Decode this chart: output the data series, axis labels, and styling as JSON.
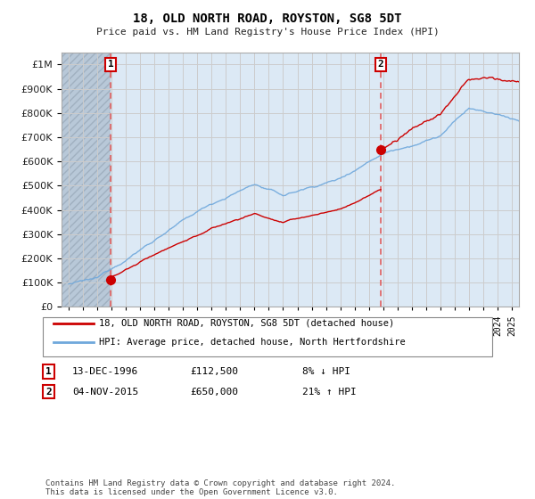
{
  "title": "18, OLD NORTH ROAD, ROYSTON, SG8 5DT",
  "subtitle": "Price paid vs. HM Land Registry's House Price Index (HPI)",
  "legend_line1": "18, OLD NORTH ROAD, ROYSTON, SG8 5DT (detached house)",
  "legend_line2": "HPI: Average price, detached house, North Hertfordshire",
  "footnote": "Contains HM Land Registry data © Crown copyright and database right 2024.\nThis data is licensed under the Open Government Licence v3.0.",
  "sale1_date": "13-DEC-1996",
  "sale1_price": 112500,
  "sale1_note": "8% ↓ HPI",
  "sale2_date": "04-NOV-2015",
  "sale2_price": 650000,
  "sale2_note": "21% ↑ HPI",
  "sale1_x": 1996.95,
  "sale2_x": 2015.84,
  "ylim_min": 0,
  "ylim_max": 1050000,
  "xlim_min": 1993.5,
  "xlim_max": 2025.5,
  "line_color_hpi": "#6fa8dc",
  "line_color_price": "#cc0000",
  "marker_color": "#cc0000",
  "vline_color": "#e06060",
  "grid_color": "#cccccc",
  "chart_bg": "#dce9f5",
  "hatch_bg": "#c8c8c8",
  "white": "#ffffff"
}
